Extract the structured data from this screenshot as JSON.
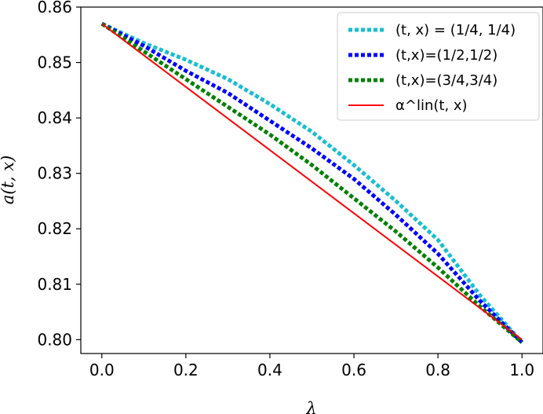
{
  "chart_data": {
    "type": "line",
    "title": "",
    "xlabel": "λ",
    "ylabel": "a(t, x)",
    "xlim": [
      -0.05,
      1.05
    ],
    "ylim": [
      0.7975,
      0.86
    ],
    "xticks": [
      0.0,
      0.2,
      0.4,
      0.6,
      0.8,
      1.0
    ],
    "xtick_labels": [
      "0.0",
      "0.2",
      "0.4",
      "0.6",
      "0.8",
      "1.0"
    ],
    "yticks": [
      0.8,
      0.81,
      0.82,
      0.83,
      0.84,
      0.85,
      0.86
    ],
    "ytick_labels": [
      "0.80",
      "0.81",
      "0.82",
      "0.83",
      "0.84",
      "0.85",
      "0.86"
    ],
    "legend_position": "upper-right",
    "grid": false,
    "series": [
      {
        "name": "(t, x) = (1/4, 1/4)",
        "color": "#17becf",
        "style": "dotted",
        "x": [
          0.0,
          0.1,
          0.2,
          0.3,
          0.4,
          0.5,
          0.6,
          0.7,
          0.8,
          0.9,
          1.0
        ],
        "y": [
          0.857,
          0.8535,
          0.8505,
          0.847,
          0.8425,
          0.8375,
          0.8315,
          0.825,
          0.818,
          0.808,
          0.7995
        ]
      },
      {
        "name": "(t,x)=(1/2,1/2)",
        "color": "#0000ff",
        "style": "dotted",
        "x": [
          0.0,
          0.1,
          0.2,
          0.3,
          0.4,
          0.5,
          0.6,
          0.7,
          0.8,
          0.9,
          1.0
        ],
        "y": [
          0.857,
          0.853,
          0.8485,
          0.8445,
          0.8395,
          0.8345,
          0.829,
          0.8225,
          0.8155,
          0.807,
          0.7995
        ]
      },
      {
        "name": "(t,x)=(3/4,3/4)",
        "color": "#008000",
        "style": "dotted",
        "x": [
          0.0,
          0.1,
          0.2,
          0.3,
          0.4,
          0.5,
          0.6,
          0.7,
          0.8,
          0.9,
          1.0
        ],
        "y": [
          0.857,
          0.852,
          0.847,
          0.842,
          0.837,
          0.8315,
          0.8255,
          0.8195,
          0.813,
          0.806,
          0.7995
        ]
      },
      {
        "name": "α^lin(t, x)",
        "color": "#ff0000",
        "style": "solid",
        "x": [
          0.0,
          1.0
        ],
        "y": [
          0.857,
          0.8
        ]
      }
    ]
  }
}
